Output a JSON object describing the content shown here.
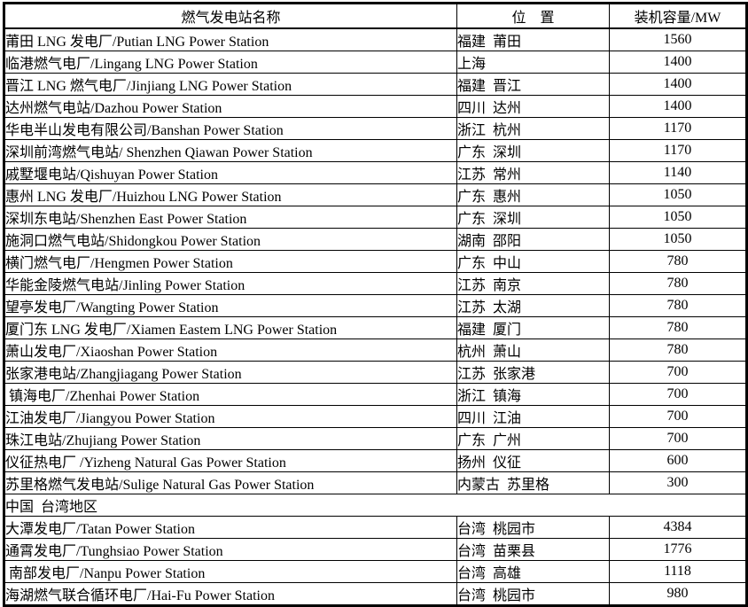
{
  "colors": {
    "border": "#000000",
    "text": "#000000",
    "background": "#ffffff"
  },
  "table": {
    "headers": [
      "燃气发电站名称",
      "位　置",
      "装机容量/MW"
    ],
    "rows": [
      {
        "name": "莆田 LNG 发电厂/Putian LNG Power Station",
        "location": "福建  莆田",
        "capacity": "1560"
      },
      {
        "name": "临港燃气电厂/Lingang LNG Power Station",
        "location": "上海",
        "capacity": "1400"
      },
      {
        "name": "晋江 LNG 燃气电厂/Jinjiang LNG Power Station",
        "location": "福建  晋江",
        "capacity": "1400"
      },
      {
        "name": "达州燃气电站/Dazhou Power Station",
        "location": "四川  达州",
        "capacity": "1400"
      },
      {
        "name": "华电半山发电有限公司/Banshan Power Station",
        "location": "浙江  杭州",
        "capacity": "1170"
      },
      {
        "name": "深圳前湾燃气电站/ Shenzhen Qiawan Power Station",
        "location": "广东  深圳",
        "capacity": "1170"
      },
      {
        "name": "戚墅堰电站/Qishuyan Power Station",
        "location": "江苏  常州",
        "capacity": "1140"
      },
      {
        "name": "惠州 LNG 发电厂/Huizhou LNG Power Station",
        "location": "广东  惠州",
        "capacity": "1050"
      },
      {
        "name": "深圳东电站/Shenzhen East Power Station",
        "location": "广东  深圳",
        "capacity": "1050"
      },
      {
        "name": "施洞口燃气电站/Shidongkou Power Station",
        "location": "湖南  邵阳",
        "capacity": "1050"
      },
      {
        "name": "横门燃气电厂/Hengmen Power Station",
        "location": "广东  中山",
        "capacity": "780"
      },
      {
        "name": "华能金陵燃气电站/Jinling Power Station",
        "location": "江苏  南京",
        "capacity": "780"
      },
      {
        "name": "望亭发电厂/Wangting Power Station",
        "location": "江苏  太湖",
        "capacity": "780"
      },
      {
        "name": "厦门东 LNG 发电厂/Xiamen Eastem LNG Power Station",
        "location": "福建  厦门",
        "capacity": "780"
      },
      {
        "name": "萧山发电厂/Xiaoshan Power Station",
        "location": "杭州  萧山",
        "capacity": "780"
      },
      {
        "name": "张家港电站/Zhangjiagang Power Station",
        "location": "江苏  张家港",
        "capacity": "700"
      },
      {
        "name": " 镇海电厂/Zhenhai Power Station",
        "location": "浙江  镇海",
        "capacity": "700"
      },
      {
        "name": "江油发电厂/Jiangyou Power Station",
        "location": "四川  江油",
        "capacity": "700"
      },
      {
        "name": "珠江电站/Zhujiang Power Station",
        "location": "广东  广州",
        "capacity": "700"
      },
      {
        "name": "仪征热电厂 /Yizheng Natural Gas Power Station",
        "location": "扬州  仪征",
        "capacity": "600"
      },
      {
        "name": "苏里格燃气发电站/Sulige Natural Gas Power Station",
        "location": "内蒙古  苏里格",
        "capacity": "300"
      },
      {
        "section": true,
        "label": "中国  台湾地区"
      },
      {
        "name": "大潭发电厂/Tatan Power Station",
        "location": "台湾  桃园市",
        "capacity": "4384"
      },
      {
        "name": "通霄发电厂/Tunghsiao Power Station",
        "location": "台湾  苗栗县",
        "capacity": "1776"
      },
      {
        "name": " 南部发电厂/Nanpu Power Station",
        "location": "台湾  高雄",
        "capacity": "1118"
      },
      {
        "name": "海湖燃气联合循环电厂/Hai-Fu Power Station",
        "location": "台湾  桃园市",
        "capacity": "980"
      }
    ]
  }
}
